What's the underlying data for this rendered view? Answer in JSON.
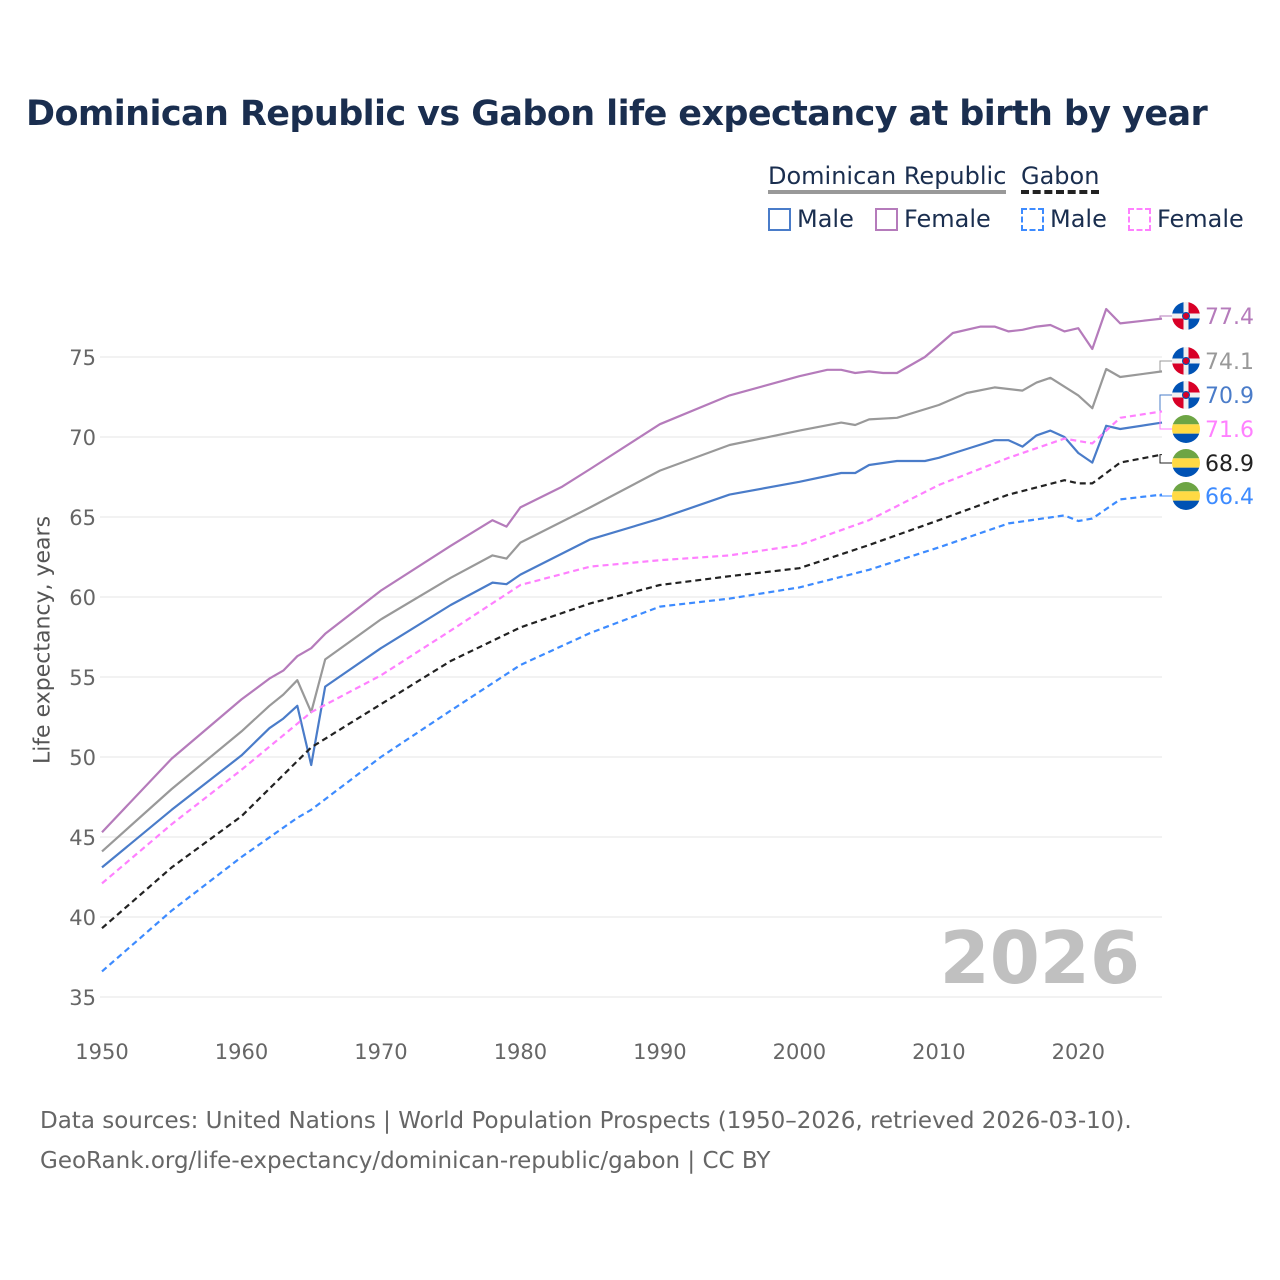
{
  "chart_data": {
    "type": "line",
    "title": "Dominican Republic vs Gabon life expectancy at birth by year",
    "xlabel": "",
    "ylabel": "Life expectancy, years",
    "xlim": [
      1950,
      2026
    ],
    "ylim": [
      35,
      78
    ],
    "x_ticks": [
      "1950",
      "1960",
      "1970",
      "1980",
      "1990",
      "2000",
      "2010",
      "2020"
    ],
    "y_ticks": [
      "35",
      "40",
      "45",
      "50",
      "55",
      "60",
      "65",
      "70",
      "75"
    ],
    "grid": true,
    "year_watermark": "2026",
    "legend": {
      "placement": "top-right",
      "groups": [
        {
          "label": "Dominican Republic",
          "color": "#999999",
          "dashed": false,
          "items": [
            {
              "label": "Male",
              "color": "#4a7cc9"
            },
            {
              "label": "Female",
              "color": "#b57bbb"
            }
          ]
        },
        {
          "label": "Gabon",
          "color": "#222222",
          "dashed": true,
          "items": [
            {
              "label": "Male",
              "color": "#3d8bff"
            },
            {
              "label": "Female",
              "color": "#ff80ff"
            }
          ]
        }
      ]
    },
    "series": [
      {
        "name": "Dominican Republic Female",
        "color": "#b57bbb",
        "dashed": false,
        "flag": "dominican-republic",
        "end_label": "77.4",
        "points": [
          [
            1950,
            45.3
          ],
          [
            1955,
            49.9
          ],
          [
            1960,
            53.6
          ],
          [
            1962,
            54.9
          ],
          [
            1963,
            55.4
          ],
          [
            1964,
            56.3
          ],
          [
            1965,
            56.8
          ],
          [
            1966,
            57.7
          ],
          [
            1970,
            60.4
          ],
          [
            1975,
            63.2
          ],
          [
            1978,
            64.8
          ],
          [
            1979,
            64.4
          ],
          [
            1980,
            65.6
          ],
          [
            1983,
            66.9
          ],
          [
            1985,
            68.0
          ],
          [
            1990,
            70.8
          ],
          [
            1995,
            72.6
          ],
          [
            2000,
            73.8
          ],
          [
            2002,
            74.2
          ],
          [
            2003,
            74.2
          ],
          [
            2004,
            74.0
          ],
          [
            2005,
            74.1
          ],
          [
            2006,
            74.0
          ],
          [
            2007,
            74.0
          ],
          [
            2009,
            75.0
          ],
          [
            2011,
            76.5
          ],
          [
            2013,
            76.9
          ],
          [
            2014,
            76.9
          ],
          [
            2015,
            76.6
          ],
          [
            2016,
            76.7
          ],
          [
            2017,
            76.9
          ],
          [
            2018,
            77.0
          ],
          [
            2019,
            76.6
          ],
          [
            2020,
            76.8
          ],
          [
            2021,
            75.5
          ],
          [
            2022,
            78.0
          ],
          [
            2023,
            77.1
          ],
          [
            2025,
            77.3
          ],
          [
            2026,
            77.4
          ]
        ]
      },
      {
        "name": "Dominican Republic",
        "color": "#999999",
        "dashed": false,
        "flag": "dominican-republic",
        "end_label": "74.1",
        "points": [
          [
            1950,
            44.1
          ],
          [
            1955,
            48.0
          ],
          [
            1960,
            51.6
          ],
          [
            1962,
            53.2
          ],
          [
            1963,
            53.9
          ],
          [
            1964,
            54.8
          ],
          [
            1965,
            52.8
          ],
          [
            1966,
            56.1
          ],
          [
            1970,
            58.6
          ],
          [
            1975,
            61.2
          ],
          [
            1978,
            62.6
          ],
          [
            1979,
            62.4
          ],
          [
            1980,
            63.4
          ],
          [
            1985,
            65.6
          ],
          [
            1990,
            67.9
          ],
          [
            1995,
            69.5
          ],
          [
            2000,
            70.4
          ],
          [
            2003,
            70.9
          ],
          [
            2004,
            70.75
          ],
          [
            2005,
            71.1
          ],
          [
            2007,
            71.2
          ],
          [
            2010,
            72.0
          ],
          [
            2012,
            72.75
          ],
          [
            2014,
            73.1
          ],
          [
            2016,
            72.9
          ],
          [
            2017,
            73.4
          ],
          [
            2018,
            73.7
          ],
          [
            2020,
            72.6
          ],
          [
            2021,
            71.8
          ],
          [
            2022,
            74.25
          ],
          [
            2023,
            73.75
          ],
          [
            2026,
            74.1
          ]
        ]
      },
      {
        "name": "Dominican Republic Male",
        "color": "#4a7cc9",
        "dashed": false,
        "flag": "dominican-republic",
        "end_label": "70.9",
        "points": [
          [
            1950,
            43.1
          ],
          [
            1955,
            46.7
          ],
          [
            1960,
            50.1
          ],
          [
            1962,
            51.8
          ],
          [
            1963,
            52.4
          ],
          [
            1964,
            53.2
          ],
          [
            1965,
            49.5
          ],
          [
            1966,
            54.4
          ],
          [
            1970,
            56.8
          ],
          [
            1975,
            59.5
          ],
          [
            1978,
            60.9
          ],
          [
            1979,
            60.8
          ],
          [
            1980,
            61.4
          ],
          [
            1985,
            63.6
          ],
          [
            1990,
            64.9
          ],
          [
            1995,
            66.4
          ],
          [
            2000,
            67.2
          ],
          [
            2003,
            67.75
          ],
          [
            2004,
            67.75
          ],
          [
            2005,
            68.25
          ],
          [
            2007,
            68.5
          ],
          [
            2009,
            68.5
          ],
          [
            2010,
            68.7
          ],
          [
            2012,
            69.25
          ],
          [
            2014,
            69.8
          ],
          [
            2015,
            69.8
          ],
          [
            2016,
            69.4
          ],
          [
            2017,
            70.1
          ],
          [
            2018,
            70.4
          ],
          [
            2019,
            70.0
          ],
          [
            2020,
            69.0
          ],
          [
            2021,
            68.4
          ],
          [
            2022,
            70.7
          ],
          [
            2023,
            70.5
          ],
          [
            2026,
            70.9
          ]
        ]
      },
      {
        "name": "Gabon Female",
        "color": "#ff80ff",
        "dashed": true,
        "flag": "gabon",
        "end_label": "71.6",
        "points": [
          [
            1950,
            42.1
          ],
          [
            1955,
            45.8
          ],
          [
            1960,
            49.2
          ],
          [
            1965,
            52.8
          ],
          [
            1970,
            55.1
          ],
          [
            1975,
            57.9
          ],
          [
            1980,
            60.75
          ],
          [
            1985,
            61.9
          ],
          [
            1990,
            62.3
          ],
          [
            1995,
            62.6
          ],
          [
            2000,
            63.25
          ],
          [
            2005,
            64.8
          ],
          [
            2010,
            67.0
          ],
          [
            2015,
            68.7
          ],
          [
            2019,
            69.9
          ],
          [
            2021,
            69.6
          ],
          [
            2023,
            71.2
          ],
          [
            2026,
            71.6
          ]
        ]
      },
      {
        "name": "Gabon",
        "color": "#222222",
        "dashed": true,
        "flag": "gabon",
        "end_label": "68.9",
        "points": [
          [
            1950,
            39.3
          ],
          [
            1955,
            43.1
          ],
          [
            1960,
            46.3
          ],
          [
            1965,
            50.6
          ],
          [
            1970,
            53.3
          ],
          [
            1975,
            56.0
          ],
          [
            1980,
            58.1
          ],
          [
            1985,
            59.6
          ],
          [
            1990,
            60.75
          ],
          [
            1995,
            61.3
          ],
          [
            2000,
            61.8
          ],
          [
            2005,
            63.25
          ],
          [
            2010,
            64.8
          ],
          [
            2015,
            66.4
          ],
          [
            2019,
            67.3
          ],
          [
            2020,
            67.1
          ],
          [
            2021,
            67.1
          ],
          [
            2023,
            68.4
          ],
          [
            2026,
            68.9
          ]
        ]
      },
      {
        "name": "Gabon Male",
        "color": "#3d8bff",
        "dashed": true,
        "flag": "gabon",
        "end_label": "66.4",
        "points": [
          [
            1950,
            36.6
          ],
          [
            1955,
            40.4
          ],
          [
            1960,
            43.75
          ],
          [
            1964,
            46.2
          ],
          [
            1965,
            46.7
          ],
          [
            1970,
            50.0
          ],
          [
            1975,
            52.9
          ],
          [
            1980,
            55.75
          ],
          [
            1985,
            57.75
          ],
          [
            1990,
            59.4
          ],
          [
            1995,
            59.9
          ],
          [
            2000,
            60.6
          ],
          [
            2005,
            61.7
          ],
          [
            2010,
            63.1
          ],
          [
            2015,
            64.6
          ],
          [
            2019,
            65.1
          ],
          [
            2020,
            64.75
          ],
          [
            2021,
            64.9
          ],
          [
            2023,
            66.1
          ],
          [
            2026,
            66.4
          ]
        ]
      }
    ]
  },
  "footer": {
    "line1": "Data sources: United Nations | World Population Prospects (1950–2026, retrieved 2026-03-10).",
    "line2": "GeoRank.org/life-expectancy/dominican-republic/gabon | CC BY"
  }
}
